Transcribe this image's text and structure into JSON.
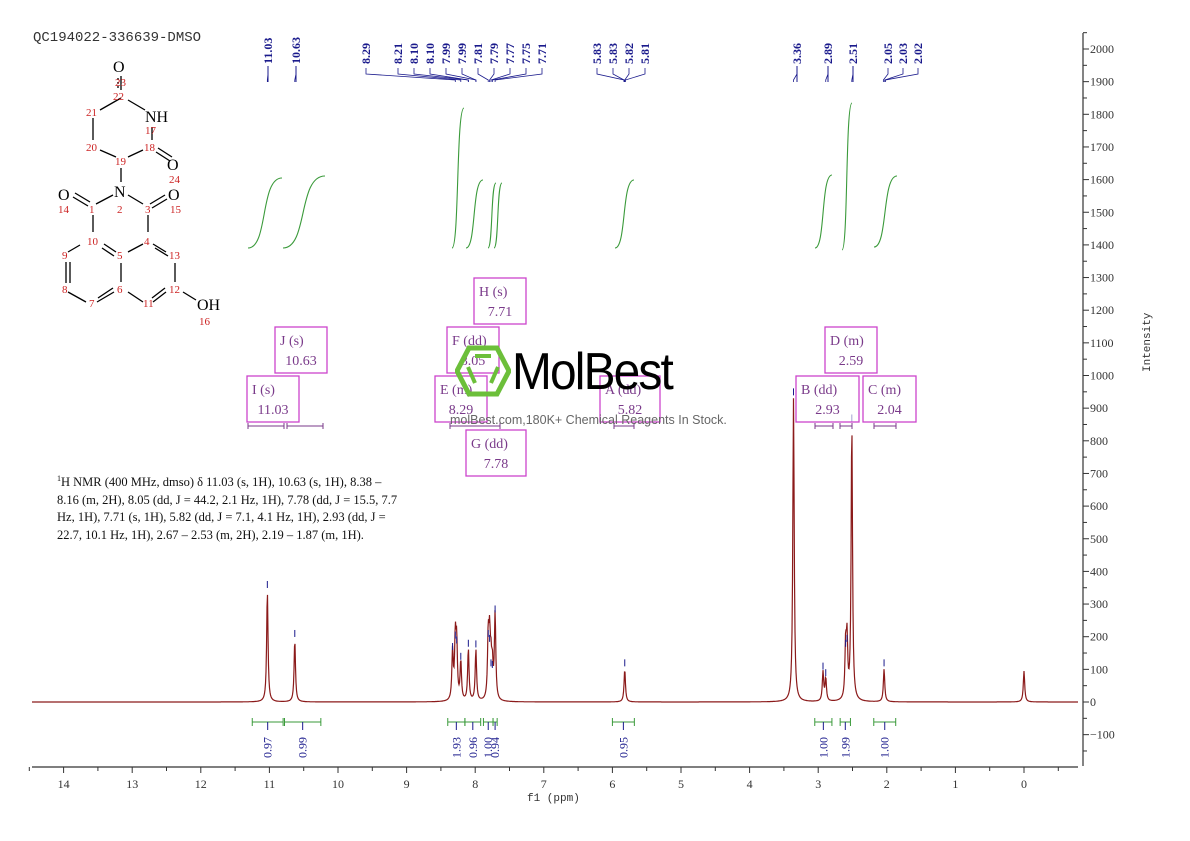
{
  "header": {
    "sample_id": "QC194022-336639-DMSO"
  },
  "structure": {
    "atoms": [
      "O",
      "23",
      "22",
      "NH",
      "21",
      "17",
      "20",
      "19",
      "18",
      "O",
      "24",
      "O",
      "N",
      "O",
      "14",
      "1",
      "2",
      "3",
      "15",
      "10",
      "4",
      "9",
      "5",
      "13",
      "8",
      "6",
      "12",
      "7",
      "11",
      "OH",
      "16"
    ]
  },
  "nmr_description": {
    "line1": "H NMR (400 MHz, dmso) δ 11.03 (s, 1H), 10.63 (s, 1H), 8.38 –",
    "nucleus_sup": "1",
    "line2": "8.16 (m, 2H), 8.05 (dd, J = 44.2, 2.1 Hz, 1H), 7.78 (dd, J = 15.5, 7.7",
    "line3": "Hz, 1H), 7.71 (s, 1H), 5.82 (dd, J = 7.1, 4.1 Hz, 1H), 2.93 (dd, J =",
    "line4": "22.7, 10.1 Hz, 1H), 2.67 – 2.53 (m, 2H), 2.19 – 1.87 (m, 1H)."
  },
  "watermark": {
    "logo_text": "MolBest",
    "subtitle": "molBest.com,180K+ Chemical Reagents In Stock.",
    "logo_color": "#6cbf3a"
  },
  "colors": {
    "spectrum": "#8b1a1a",
    "peak_labels": "#1a1a8c",
    "integral": "#3a9a3a",
    "multiplet_box": "#cc44cc",
    "multiplet_text": "#7a3a8a",
    "axis": "#333333"
  },
  "chart_data": {
    "type": "line",
    "title": "QC194022-336639-DMSO",
    "xlabel": "f1 (ppm)",
    "ylabel": "Intensity",
    "xlim": [
      14.5,
      -0.8
    ],
    "ylim": [
      -200,
      2050
    ],
    "x_ticks": [
      "14",
      "13",
      "12",
      "11",
      "10",
      "9",
      "8",
      "7",
      "6",
      "5",
      "4",
      "3",
      "2",
      "1",
      "0"
    ],
    "y_ticks": [
      "2000",
      "1900",
      "1800",
      "1700",
      "1600",
      "1500",
      "1400",
      "1300",
      "1200",
      "1100",
      "1000",
      "900",
      "800",
      "700",
      "600",
      "500",
      "400",
      "300",
      "200",
      "100",
      "0",
      "-100"
    ],
    "grid": false,
    "peak_labels": [
      "11.03",
      "10.63",
      "8.29",
      "8.21",
      "8.10",
      "8.10",
      "7.99",
      "7.99",
      "7.81",
      "7.79",
      "7.77",
      "7.75",
      "7.71",
      "5.83",
      "5.83",
      "5.82",
      "5.81",
      "3.36",
      "2.89",
      "2.51",
      "2.05",
      "2.03",
      "2.02"
    ],
    "peaks": [
      {
        "ppm": 11.03,
        "intensity": 340
      },
      {
        "ppm": 10.63,
        "intensity": 190
      },
      {
        "ppm": 8.33,
        "intensity": 150
      },
      {
        "ppm": 8.29,
        "intensity": 185
      },
      {
        "ppm": 8.27,
        "intensity": 170
      },
      {
        "ppm": 8.21,
        "intensity": 120
      },
      {
        "ppm": 8.1,
        "intensity": 160
      },
      {
        "ppm": 7.99,
        "intensity": 158
      },
      {
        "ppm": 7.81,
        "intensity": 190
      },
      {
        "ppm": 7.79,
        "intensity": 175
      },
      {
        "ppm": 7.77,
        "intensity": 100
      },
      {
        "ppm": 7.75,
        "intensity": 95
      },
      {
        "ppm": 7.71,
        "intensity": 265
      },
      {
        "ppm": 5.82,
        "intensity": 100
      },
      {
        "ppm": 3.36,
        "intensity": 930
      },
      {
        "ppm": 2.93,
        "intensity": 90
      },
      {
        "ppm": 2.89,
        "intensity": 70
      },
      {
        "ppm": 2.6,
        "intensity": 160
      },
      {
        "ppm": 2.58,
        "intensity": 175
      },
      {
        "ppm": 2.51,
        "intensity": 850
      },
      {
        "ppm": 2.04,
        "intensity": 100
      },
      {
        "ppm": 0.0,
        "intensity": 95
      }
    ],
    "multiplets": [
      {
        "label": "I (s)",
        "shift": "11.03"
      },
      {
        "label": "J (s)",
        "shift": "10.63"
      },
      {
        "label": "E (m)",
        "shift": "8.29"
      },
      {
        "label": "F (dd)",
        "shift": "8.05"
      },
      {
        "label": "H (s)",
        "shift": "7.71"
      },
      {
        "label": "G (dd)",
        "shift": "7.78"
      },
      {
        "label": "A (dd)",
        "shift": "5.82"
      },
      {
        "label": "B (dd)",
        "shift": "2.93"
      },
      {
        "label": "D (m)",
        "shift": "2.59"
      },
      {
        "label": "C (m)",
        "shift": "2.04"
      }
    ],
    "integrals": [
      {
        "from": 11.25,
        "to": 10.8,
        "value": "0.97"
      },
      {
        "from": 10.78,
        "to": 10.25,
        "value": "0.99"
      },
      {
        "from": 8.4,
        "to": 8.15,
        "value": "1.93"
      },
      {
        "from": 8.15,
        "to": 7.92,
        "value": "0.96"
      },
      {
        "from": 7.88,
        "to": 7.74,
        "value": "1.00"
      },
      {
        "from": 7.74,
        "to": 7.68,
        "value": "0.94"
      },
      {
        "from": 6.0,
        "to": 5.68,
        "value": "0.95"
      },
      {
        "from": 3.05,
        "to": 2.8,
        "value": "1.00"
      },
      {
        "from": 2.68,
        "to": 2.53,
        "value": "1.99"
      },
      {
        "from": 2.19,
        "to": 1.87,
        "value": "1.00"
      }
    ]
  }
}
